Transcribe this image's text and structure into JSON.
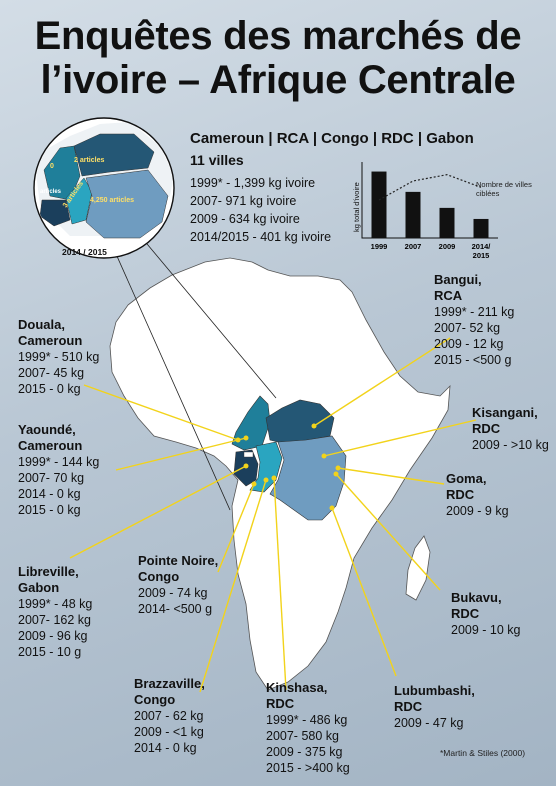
{
  "title_line1": "Enquêtes des marchés de",
  "title_line2": "l’ivoire – Afrique Centrale",
  "summary": {
    "countries": "Cameroun | RCA | Congo | RDC | Gabon",
    "villes": "11 villes",
    "stats": [
      "1999* - 1,399 kg ivoire",
      "2007- 971 kg ivoire",
      "2009 - 634 kg ivoire",
      "2014/2015 - 401 kg ivoire"
    ]
  },
  "chart_data": {
    "type": "bar",
    "categories": [
      "1999",
      "2007",
      "2009",
      "2014/\n2015"
    ],
    "series": [
      {
        "values": [
          1399,
          971,
          634,
          401
        ]
      },
      {
        "name": "Nombre de villes ciblées",
        "type": "line",
        "values": [
          6,
          9,
          10,
          8
        ]
      }
    ],
    "ylabel": "kg total d'ivoire",
    "ylim": [
      0,
      1600
    ],
    "colors": {
      "bars": "#111111",
      "line": "#222222"
    }
  },
  "inset": {
    "year_label": "2014 / 2015",
    "labels": [
      "0",
      "2 articles",
      "articles",
      "3 articles",
      "4,250 articles"
    ]
  },
  "cities": [
    {
      "key": "douala",
      "name": "Douala,",
      "country": "Cameroun",
      "lines": [
        "1999* - 510 kg",
        "2007- 45 kg",
        "2015 - 0 kg"
      ]
    },
    {
      "key": "yaounde",
      "name": "Yaoundé,",
      "country": "Cameroun",
      "lines": [
        "1999* - 144 kg",
        "2007- 70 kg",
        "2014 - 0 kg",
        "2015 - 0 kg"
      ]
    },
    {
      "key": "libreville",
      "name": "Libreville,",
      "country": "Gabon",
      "lines": [
        "1999* - 48 kg",
        "2007- 162 kg",
        "2009 - 96 kg",
        "2015 - 10 g"
      ]
    },
    {
      "key": "pointe_noire",
      "name": "Pointe Noire,",
      "country": "Congo",
      "lines": [
        "2009 - 74 kg",
        "2014- <500 g"
      ]
    },
    {
      "key": "brazzaville",
      "name": "Brazzaville,",
      "country": "Congo",
      "lines": [
        "2007 - 62 kg",
        "2009 - <1 kg",
        "2014 - 0 kg"
      ]
    },
    {
      "key": "kinshasa",
      "name": "Kinshasa,",
      "country": "RDC",
      "lines": [
        "1999* - 486 kg",
        "2007- 580 kg",
        "2009 - 375 kg",
        "2015 - >400 kg"
      ]
    },
    {
      "key": "lubumbashi",
      "name": "Lubumbashi,",
      "country": "RDC",
      "lines": [
        "2009 - 47 kg"
      ]
    },
    {
      "key": "bangui",
      "name": "Bangui,",
      "country": "RCA",
      "lines": [
        "1999* - 211 kg",
        "2007- 52 kg",
        "2009 - 12 kg",
        "2015 - <500 g"
      ]
    },
    {
      "key": "kisangani",
      "name": "Kisangani,",
      "country": "RDC",
      "lines": [
        "2009 - >10 kg"
      ]
    },
    {
      "key": "goma",
      "name": "Goma,",
      "country": "RDC",
      "lines": [
        "2009 - 9 kg"
      ]
    },
    {
      "key": "bukavu",
      "name": "Bukavu,",
      "country": "RDC",
      "lines": [
        "2009 - 10 kg"
      ]
    }
  ],
  "source": "*Martin & Stiles (2000)",
  "colors": {
    "background": "#b9c7d4",
    "africa": "#ffffff",
    "cameroon": "#1f7f9a",
    "car": "#245775",
    "gabon": "#1b3f5c",
    "congo": "#2aa5c0",
    "drc": "#6f9cc0",
    "leader": "#f2d31b"
  }
}
